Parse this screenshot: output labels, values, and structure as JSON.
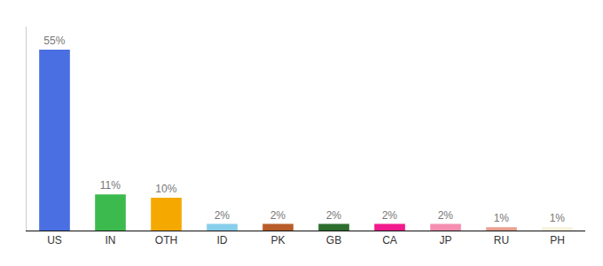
{
  "chart_data": {
    "type": "bar",
    "categories": [
      "US",
      "IN",
      "OTH",
      "ID",
      "PK",
      "GB",
      "CA",
      "JP",
      "RU",
      "PH"
    ],
    "values": [
      55,
      11,
      10,
      2,
      2,
      2,
      2,
      2,
      1,
      1
    ],
    "value_labels": [
      "55%",
      "11%",
      "10%",
      "2%",
      "2%",
      "2%",
      "2%",
      "2%",
      "1%",
      "1%"
    ],
    "colors": [
      "#4a6fe3",
      "#3dba4e",
      "#f5a800",
      "#87ceeb",
      "#b85c2a",
      "#2d6e2d",
      "#f01a8c",
      "#f48fb1",
      "#e8a090",
      "#f5f0dc"
    ],
    "ylim": [
      0,
      62
    ],
    "grid": false,
    "data_labels": true,
    "tick_labels": "x"
  }
}
